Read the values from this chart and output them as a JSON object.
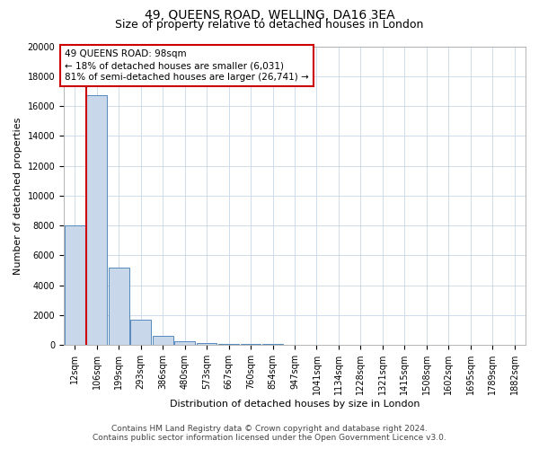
{
  "title": "49, QUEENS ROAD, WELLING, DA16 3EA",
  "subtitle": "Size of property relative to detached houses in London",
  "xlabel": "Distribution of detached houses by size in London",
  "ylabel": "Number of detached properties",
  "property_label": "49 QUEENS ROAD: 98sqm",
  "annotation_line1": "← 18% of detached houses are smaller (6,031)",
  "annotation_line2": "81% of semi-detached houses are larger (26,741) →",
  "footer_line1": "Contains HM Land Registry data © Crown copyright and database right 2024.",
  "footer_line2": "Contains public sector information licensed under the Open Government Licence v3.0.",
  "bin_labels": [
    "12sqm",
    "106sqm",
    "199sqm",
    "293sqm",
    "386sqm",
    "480sqm",
    "573sqm",
    "667sqm",
    "760sqm",
    "854sqm",
    "947sqm",
    "1041sqm",
    "1134sqm",
    "1228sqm",
    "1321sqm",
    "1415sqm",
    "1508sqm",
    "1602sqm",
    "1695sqm",
    "1789sqm",
    "1882sqm"
  ],
  "bar_values": [
    8000,
    16700,
    5200,
    1700,
    600,
    250,
    150,
    100,
    80,
    60,
    40,
    0,
    0,
    0,
    0,
    0,
    0,
    0,
    0,
    0,
    0
  ],
  "bar_color": "#c8d8ea",
  "bar_edge_color": "#5588bb",
  "property_line_color": "#cc0000",
  "annotation_box_edge_color": "#cc0000",
  "ylim": [
    0,
    20000
  ],
  "yticks": [
    0,
    2000,
    4000,
    6000,
    8000,
    10000,
    12000,
    14000,
    16000,
    18000,
    20000
  ],
  "property_line_x": 0.5,
  "bg_color": "#ffffff",
  "grid_color": "#c8d8e8",
  "title_fontsize": 10,
  "subtitle_fontsize": 9,
  "axis_label_fontsize": 8,
  "tick_fontsize": 7,
  "footer_fontsize": 6.5
}
